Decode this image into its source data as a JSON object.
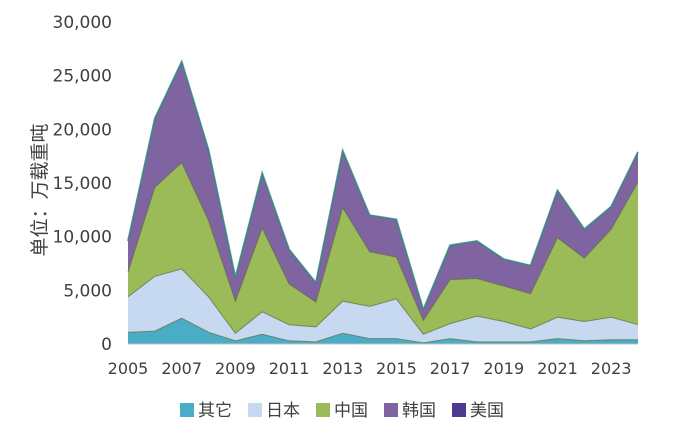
{
  "chart_data": {
    "type": "area",
    "stacked": true,
    "ylabel": "单位：万载重吨",
    "xlabel": "",
    "ylim": [
      0,
      30000
    ],
    "yticks": [
      "0",
      "5,000",
      "10,000",
      "15,000",
      "20,000",
      "25,000",
      "30,000"
    ],
    "x": [
      2005,
      2006,
      2007,
      2008,
      2009,
      2010,
      2011,
      2012,
      2013,
      2014,
      2015,
      2016,
      2017,
      2018,
      2019,
      2020,
      2021,
      2022,
      2023,
      2024
    ],
    "xtick_labels": [
      "2005",
      "2007",
      "2009",
      "2011",
      "2013",
      "2015",
      "2017",
      "2019",
      "2021",
      "2023"
    ],
    "legend_position": "bottom",
    "grid": false,
    "series": [
      {
        "name": "其它",
        "color": "#4bacc6",
        "values": [
          1100,
          1200,
          2400,
          1100,
          300,
          900,
          300,
          200,
          1000,
          500,
          500,
          100,
          500,
          200,
          200,
          200,
          500,
          300,
          400,
          400
        ]
      },
      {
        "name": "日本",
        "color": "#c6d9f1",
        "values": [
          3300,
          5100,
          4600,
          3300,
          700,
          2100,
          1500,
          1400,
          3000,
          3000,
          3700,
          800,
          1400,
          2400,
          1900,
          1200,
          2000,
          1800,
          2100,
          1400
        ]
      },
      {
        "name": "中国",
        "color": "#9bbb59",
        "values": [
          2300,
          8300,
          9900,
          7100,
          3000,
          7800,
          3800,
          2300,
          8700,
          5100,
          3900,
          1300,
          4100,
          3500,
          3300,
          3300,
          7400,
          5900,
          8200,
          13300
        ]
      },
      {
        "name": "韩国",
        "color": "#8064a2",
        "values": [
          2900,
          6400,
          9400,
          6600,
          2200,
          5100,
          3200,
          1800,
          5300,
          3400,
          3500,
          1000,
          3200,
          3500,
          2500,
          2600,
          4400,
          2700,
          2100,
          2800
        ]
      },
      {
        "name": "美国",
        "color": "#4e3a8e",
        "values": [
          0,
          0,
          0,
          0,
          0,
          0,
          0,
          0,
          0,
          0,
          0,
          0,
          0,
          0,
          0,
          0,
          0,
          0,
          0,
          0
        ]
      }
    ]
  }
}
